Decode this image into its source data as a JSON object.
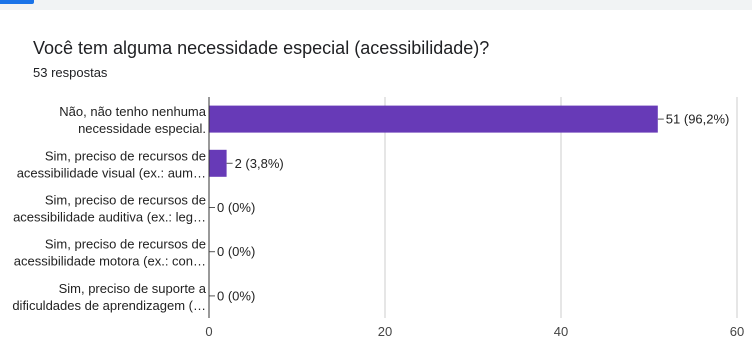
{
  "question": {
    "title": "Você tem alguma necessidade especial (acessibilidade)?",
    "responses": "53 respostas"
  },
  "colors": {
    "bar": "#673ab7",
    "accent": "#1a73e8",
    "grid": "#cccccc",
    "axis": "#333333"
  },
  "chart_data": {
    "type": "bar",
    "orientation": "horizontal",
    "categories": [
      [
        "Não, não tenho nenhuma",
        "necessidade especial."
      ],
      [
        "Sim, preciso de recursos de",
        "acessibilidade visual (ex.: aum…"
      ],
      [
        "Sim, preciso de recursos de",
        "acessibilidade auditiva (ex.: leg…"
      ],
      [
        "Sim, preciso de recursos de",
        "acessibilidade motora (ex.: con…"
      ],
      [
        "Sim, preciso de suporte a",
        "dificuldades de aprendizagem (…"
      ]
    ],
    "values": [
      51,
      2,
      0,
      0,
      0
    ],
    "labels": [
      "51 (96,2%)",
      "2 (3,8%)",
      "0 (0%)",
      "0 (0%)",
      "0 (0%)"
    ],
    "xlim": [
      0,
      60
    ],
    "xticks": [
      0,
      20,
      40,
      60
    ],
    "grid": true,
    "legend": "none"
  }
}
